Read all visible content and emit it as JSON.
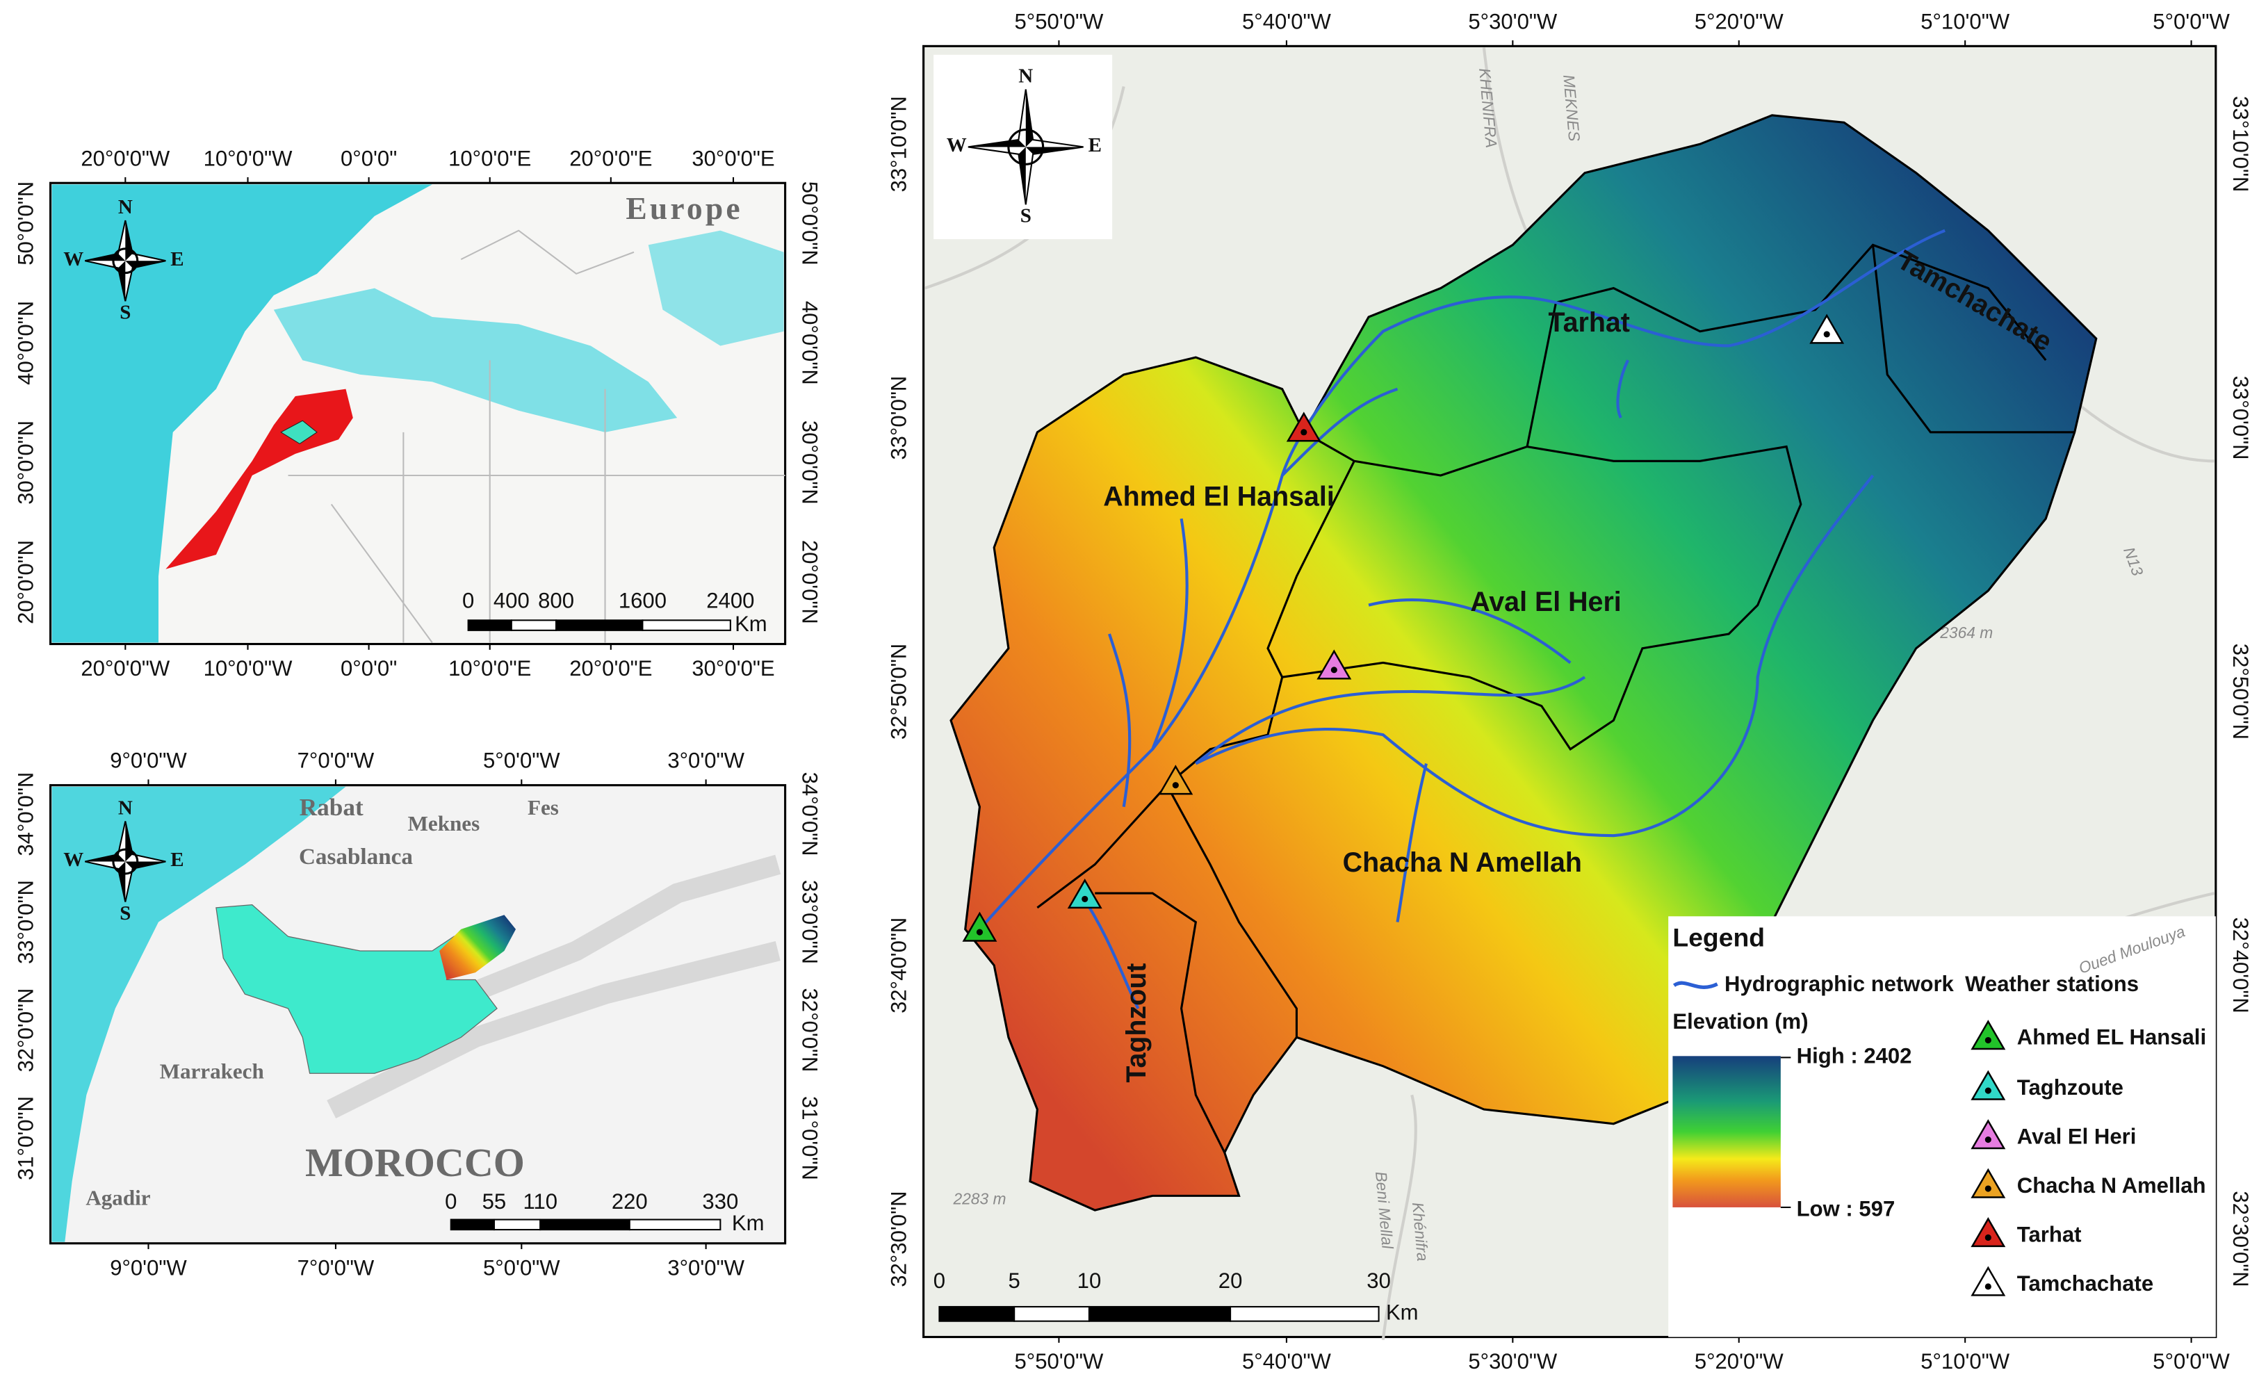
{
  "world_inset": {
    "lon_ticks": [
      "20°0'0\"W",
      "10°0'0\"W",
      "0°0'0\"",
      "10°0'0\"E",
      "20°0'0\"E",
      "30°0'0\"E"
    ],
    "lat_ticks": [
      "50°0'0\"N",
      "40°0'0\"N",
      "30°0'0\"N",
      "20°0'0\"N"
    ],
    "place_labels": [
      "Europe"
    ],
    "compass": {
      "n": "N",
      "w": "W",
      "e": "E",
      "s": "S"
    },
    "scale_bar": {
      "ticks": [
        "0",
        "400",
        "800",
        "1600",
        "2400"
      ],
      "unit": "Km"
    }
  },
  "morocco_inset": {
    "lon_ticks": [
      "9°0'0\"W",
      "7°0'0\"W",
      "5°0'0\"W",
      "3°0'0\"W"
    ],
    "lat_ticks": [
      "34°0'0\"N",
      "33°0'0\"N",
      "32°0'0\"N",
      "31°0'0\"N"
    ],
    "place_labels": [
      "Rabat",
      "Meknes",
      "Fes",
      "Casablanca",
      "Marrakech",
      "MOROCCO",
      "Agadir"
    ],
    "compass": {
      "n": "N",
      "w": "W",
      "e": "E",
      "s": "S"
    },
    "scale_bar": {
      "ticks": [
        "0",
        "55",
        "110",
        "220",
        "330"
      ],
      "unit": "Km"
    }
  },
  "main_map": {
    "lon_ticks": [
      "5°50'0\"W",
      "5°40'0\"W",
      "5°30'0\"W",
      "5°20'0\"W",
      "5°10'0\"W",
      "5°0'0\"W"
    ],
    "lat_ticks": [
      "33°10'0\"N",
      "33°0'0\"N",
      "32°50'0\"N",
      "32°40'0\"N",
      "32°30'0\"N"
    ],
    "basin_labels": [
      "Tarhat",
      "Tamchachate",
      "Ahmed El Hansali",
      "Aval El Heri",
      "Chacha N Amellah",
      "Taghzout"
    ],
    "background_labels": [
      "2364 m",
      "2283 m",
      "N13",
      "Oued Moulouya",
      "KHENIFRA",
      "MEKNES",
      "Beni Mellal",
      "Khénifra"
    ],
    "compass": {
      "n": "N",
      "w": "W",
      "e": "E",
      "s": "S"
    },
    "scale_bar": {
      "ticks": [
        "0",
        "5",
        "10",
        "20",
        "30"
      ],
      "unit": "Km"
    }
  },
  "legend": {
    "title": "Legend",
    "hydrographic_network": "Hydrographic network",
    "weather_stations_title": "Weather stations",
    "elevation_title": "Elevation (m)",
    "elevation_high": "High : 2402",
    "elevation_low": "Low : 597",
    "stations": [
      "Ahmed EL Hansali",
      "Taghzoute",
      "Aval El Heri",
      "Chacha N Amellah",
      "Tarhat",
      "Tamchachate"
    ]
  }
}
